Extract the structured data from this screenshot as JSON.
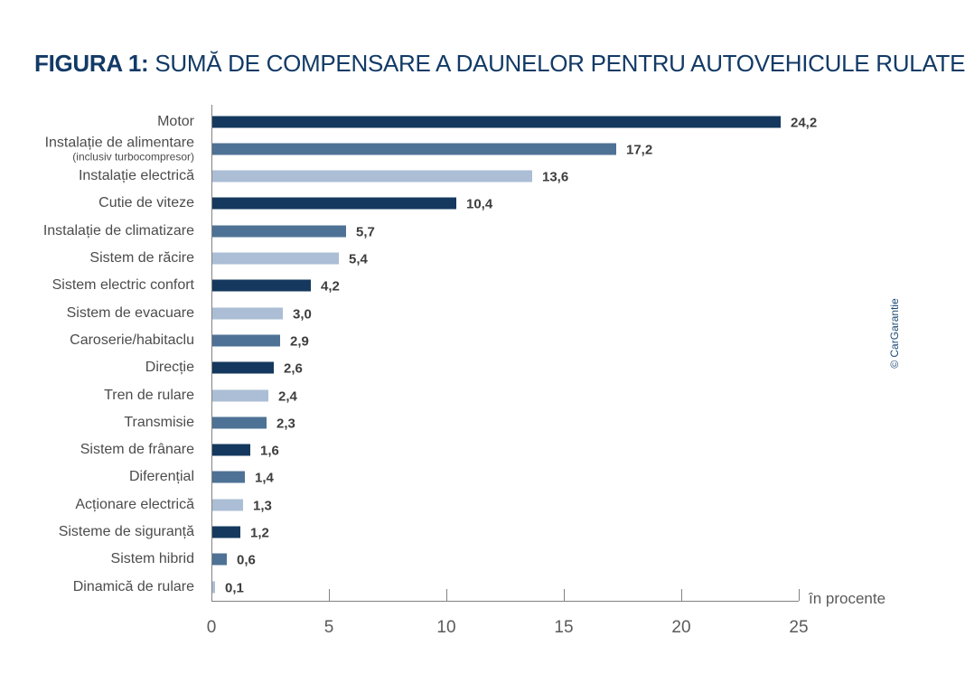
{
  "title": {
    "prefix": "FIGURA 1:",
    "text": "SUMĂ DE COMPENSARE A DAUNELOR PENTRU AUTOVEHICULE RULATE"
  },
  "credit": "© CarGarantie",
  "colors": {
    "dark": "#15395e",
    "medium": "#4e7295",
    "light": "#abbed5",
    "axis": "#828282",
    "title": "#123a66",
    "value_label": "#3d3d3d",
    "category_label": "#4c4c4c"
  },
  "chart_data": {
    "type": "bar",
    "orientation": "horizontal",
    "title": "FIGURA 1: SUMĂ DE COMPENSARE A DAUNELOR PENTRU AUTOVEHICULE RULATE",
    "xlabel": "în procente",
    "xlim": [
      0,
      25
    ],
    "x_ticks": [
      0,
      5,
      10,
      15,
      20,
      25
    ],
    "grid": false,
    "legend": false,
    "rows": [
      {
        "label": "Motor",
        "sublabel": "",
        "value": 24.2,
        "display": "24,2",
        "color": "dark"
      },
      {
        "label": "Instalație de alimentare",
        "sublabel": "(inclusiv turbocompresor)",
        "value": 17.2,
        "display": "17,2",
        "color": "medium"
      },
      {
        "label": "Instalație electrică",
        "sublabel": "",
        "value": 13.6,
        "display": "13,6",
        "color": "light"
      },
      {
        "label": "Cutie de viteze",
        "sublabel": "",
        "value": 10.4,
        "display": "10,4",
        "color": "dark"
      },
      {
        "label": "Instalație de climatizare",
        "sublabel": "",
        "value": 5.7,
        "display": "5,7",
        "color": "medium"
      },
      {
        "label": "Sistem de răcire",
        "sublabel": "",
        "value": 5.4,
        "display": "5,4",
        "color": "light"
      },
      {
        "label": "Sistem electric confort",
        "sublabel": "",
        "value": 4.2,
        "display": "4,2",
        "color": "dark"
      },
      {
        "label": "Sistem de evacuare",
        "sublabel": "",
        "value": 3.0,
        "display": "3,0",
        "color": "light"
      },
      {
        "label": "Caroserie/habitaclu",
        "sublabel": "",
        "value": 2.9,
        "display": "2,9",
        "color": "medium"
      },
      {
        "label": "Direcție",
        "sublabel": "",
        "value": 2.6,
        "display": "2,6",
        "color": "dark"
      },
      {
        "label": "Tren de rulare",
        "sublabel": "",
        "value": 2.4,
        "display": "2,4",
        "color": "light"
      },
      {
        "label": "Transmisie",
        "sublabel": "",
        "value": 2.3,
        "display": "2,3",
        "color": "medium"
      },
      {
        "label": "Sistem de frânare",
        "sublabel": "",
        "value": 1.6,
        "display": "1,6",
        "color": "dark"
      },
      {
        "label": "Diferențial",
        "sublabel": "",
        "value": 1.4,
        "display": "1,4",
        "color": "medium"
      },
      {
        "label": "Acționare electrică",
        "sublabel": "",
        "value": 1.3,
        "display": "1,3",
        "color": "light"
      },
      {
        "label": "Sisteme de siguranță",
        "sublabel": "",
        "value": 1.2,
        "display": "1,2",
        "color": "dark"
      },
      {
        "label": "Sistem hibrid",
        "sublabel": "",
        "value": 0.6,
        "display": "0,6",
        "color": "medium"
      },
      {
        "label": "Dinamică de rulare",
        "sublabel": "",
        "value": 0.1,
        "display": "0,1",
        "color": "light"
      }
    ]
  }
}
